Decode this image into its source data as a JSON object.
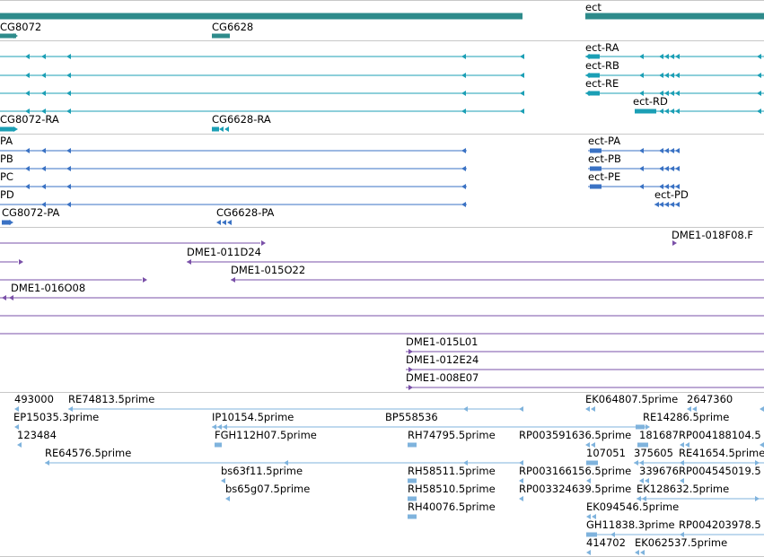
{
  "colors": {
    "gene": "#2e8b8b",
    "transcript": "#1b9fb5",
    "protein": "#3a72c4",
    "clone": "#7a50a8",
    "est": "#7fb3dd",
    "separator": "#c8c8c8"
  },
  "tracks": {
    "genes": {
      "features": [
        {
          "label": "ect"
        },
        {
          "label": "CG8072"
        },
        {
          "label": "CG6628"
        }
      ]
    },
    "transcripts": {
      "features": [
        {
          "label": "ect-RA"
        },
        {
          "label": "ect-RB"
        },
        {
          "label": "ect-RE"
        },
        {
          "label": "ect-RD"
        },
        {
          "label": "CG8072-RA"
        },
        {
          "label": "CG6628-RA"
        }
      ]
    },
    "proteins": {
      "features": [
        {
          "label": "PA"
        },
        {
          "label": "ect-PA"
        },
        {
          "label": "PB"
        },
        {
          "label": "ect-PB"
        },
        {
          "label": "PC"
        },
        {
          "label": "ect-PE"
        },
        {
          "label": "PD"
        },
        {
          "label": "ect-PD"
        },
        {
          "label": "CG8072-PA"
        },
        {
          "label": "CG6628-PA"
        }
      ]
    },
    "clones": {
      "features": [
        {
          "label": "DME1-018F08.F"
        },
        {
          "label": "DME1-011D24"
        },
        {
          "label": "DME1-015O22"
        },
        {
          "label": "DME1-016O08"
        },
        {
          "label": "DME1-015L01"
        },
        {
          "label": "DME1-012E24"
        },
        {
          "label": "DME1-008E07"
        }
      ]
    },
    "ests": {
      "features": [
        {
          "label": "493000"
        },
        {
          "label": "RE74813.5prime"
        },
        {
          "label": "EK064807.5prime"
        },
        {
          "label": "2647360"
        },
        {
          "label": "EP15035.3prime"
        },
        {
          "label": "IP10154.5prime"
        },
        {
          "label": "BP558536"
        },
        {
          "label": "RE14286.5prime"
        },
        {
          "label": "123484"
        },
        {
          "label": "FGH112H07.5prime"
        },
        {
          "label": "RH74795.5prime"
        },
        {
          "label": "RP003591636.5prime"
        },
        {
          "label": "181687"
        },
        {
          "label": "RP004188104.5"
        },
        {
          "label": "RE64576.5prime"
        },
        {
          "label": "107051"
        },
        {
          "label": "375605"
        },
        {
          "label": "RE41654.5prime"
        },
        {
          "label": "bs63f11.5prime"
        },
        {
          "label": "RH58511.5prime"
        },
        {
          "label": "RP003166156.5prime"
        },
        {
          "label": "339676"
        },
        {
          "label": "RP004545019.5"
        },
        {
          "label": "bs65g07.5prime"
        },
        {
          "label": "RH58510.5prime"
        },
        {
          "label": "RP003324639.5prime"
        },
        {
          "label": "EK128632.5prime"
        },
        {
          "label": "RH40076.5prime"
        },
        {
          "label": "EK094546.5prime"
        },
        {
          "label": "GH11838.3prime"
        },
        {
          "label": "RP004203978.5"
        },
        {
          "label": "414702"
        },
        {
          "label": "EK062537.5prime"
        }
      ]
    }
  }
}
